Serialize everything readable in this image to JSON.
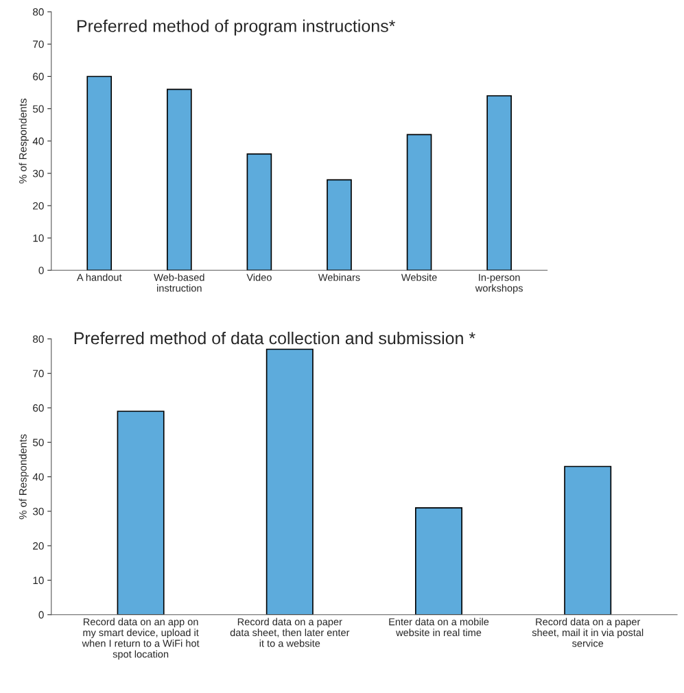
{
  "chart_data": [
    {
      "type": "bar",
      "title": "Preferred method of program instructions*",
      "ylabel": "% of Respondents",
      "categories": [
        "A handout",
        "Web-based\ninstruction",
        "Video",
        "Webinars",
        "Website",
        "In-person\nworkshops"
      ],
      "values": [
        60,
        56,
        36,
        28,
        42,
        54
      ],
      "color": "#5dabdc",
      "ylim": [
        0,
        80
      ],
      "yticks": [
        0,
        10,
        20,
        30,
        40,
        50,
        60,
        70,
        80
      ],
      "grid": false
    },
    {
      "type": "bar",
      "title": "Preferred method of data collection and submission *",
      "ylabel": "% of Respondents",
      "categories": [
        "Record data on an app on\nmy smart device, upload it\nwhen I return to a WiFi hot\nspot location",
        "Record data on a paper\ndata sheet, then later enter\nit to a website",
        "Enter data on a mobile\nwebsite in real time",
        "Record data on a paper\nsheet, mail it in via postal\nservice"
      ],
      "values": [
        59,
        77,
        31,
        43
      ],
      "color": "#5dabdc",
      "ylim": [
        0,
        80
      ],
      "yticks": [
        0,
        10,
        20,
        30,
        40,
        50,
        60,
        70,
        80
      ],
      "grid": false
    }
  ]
}
